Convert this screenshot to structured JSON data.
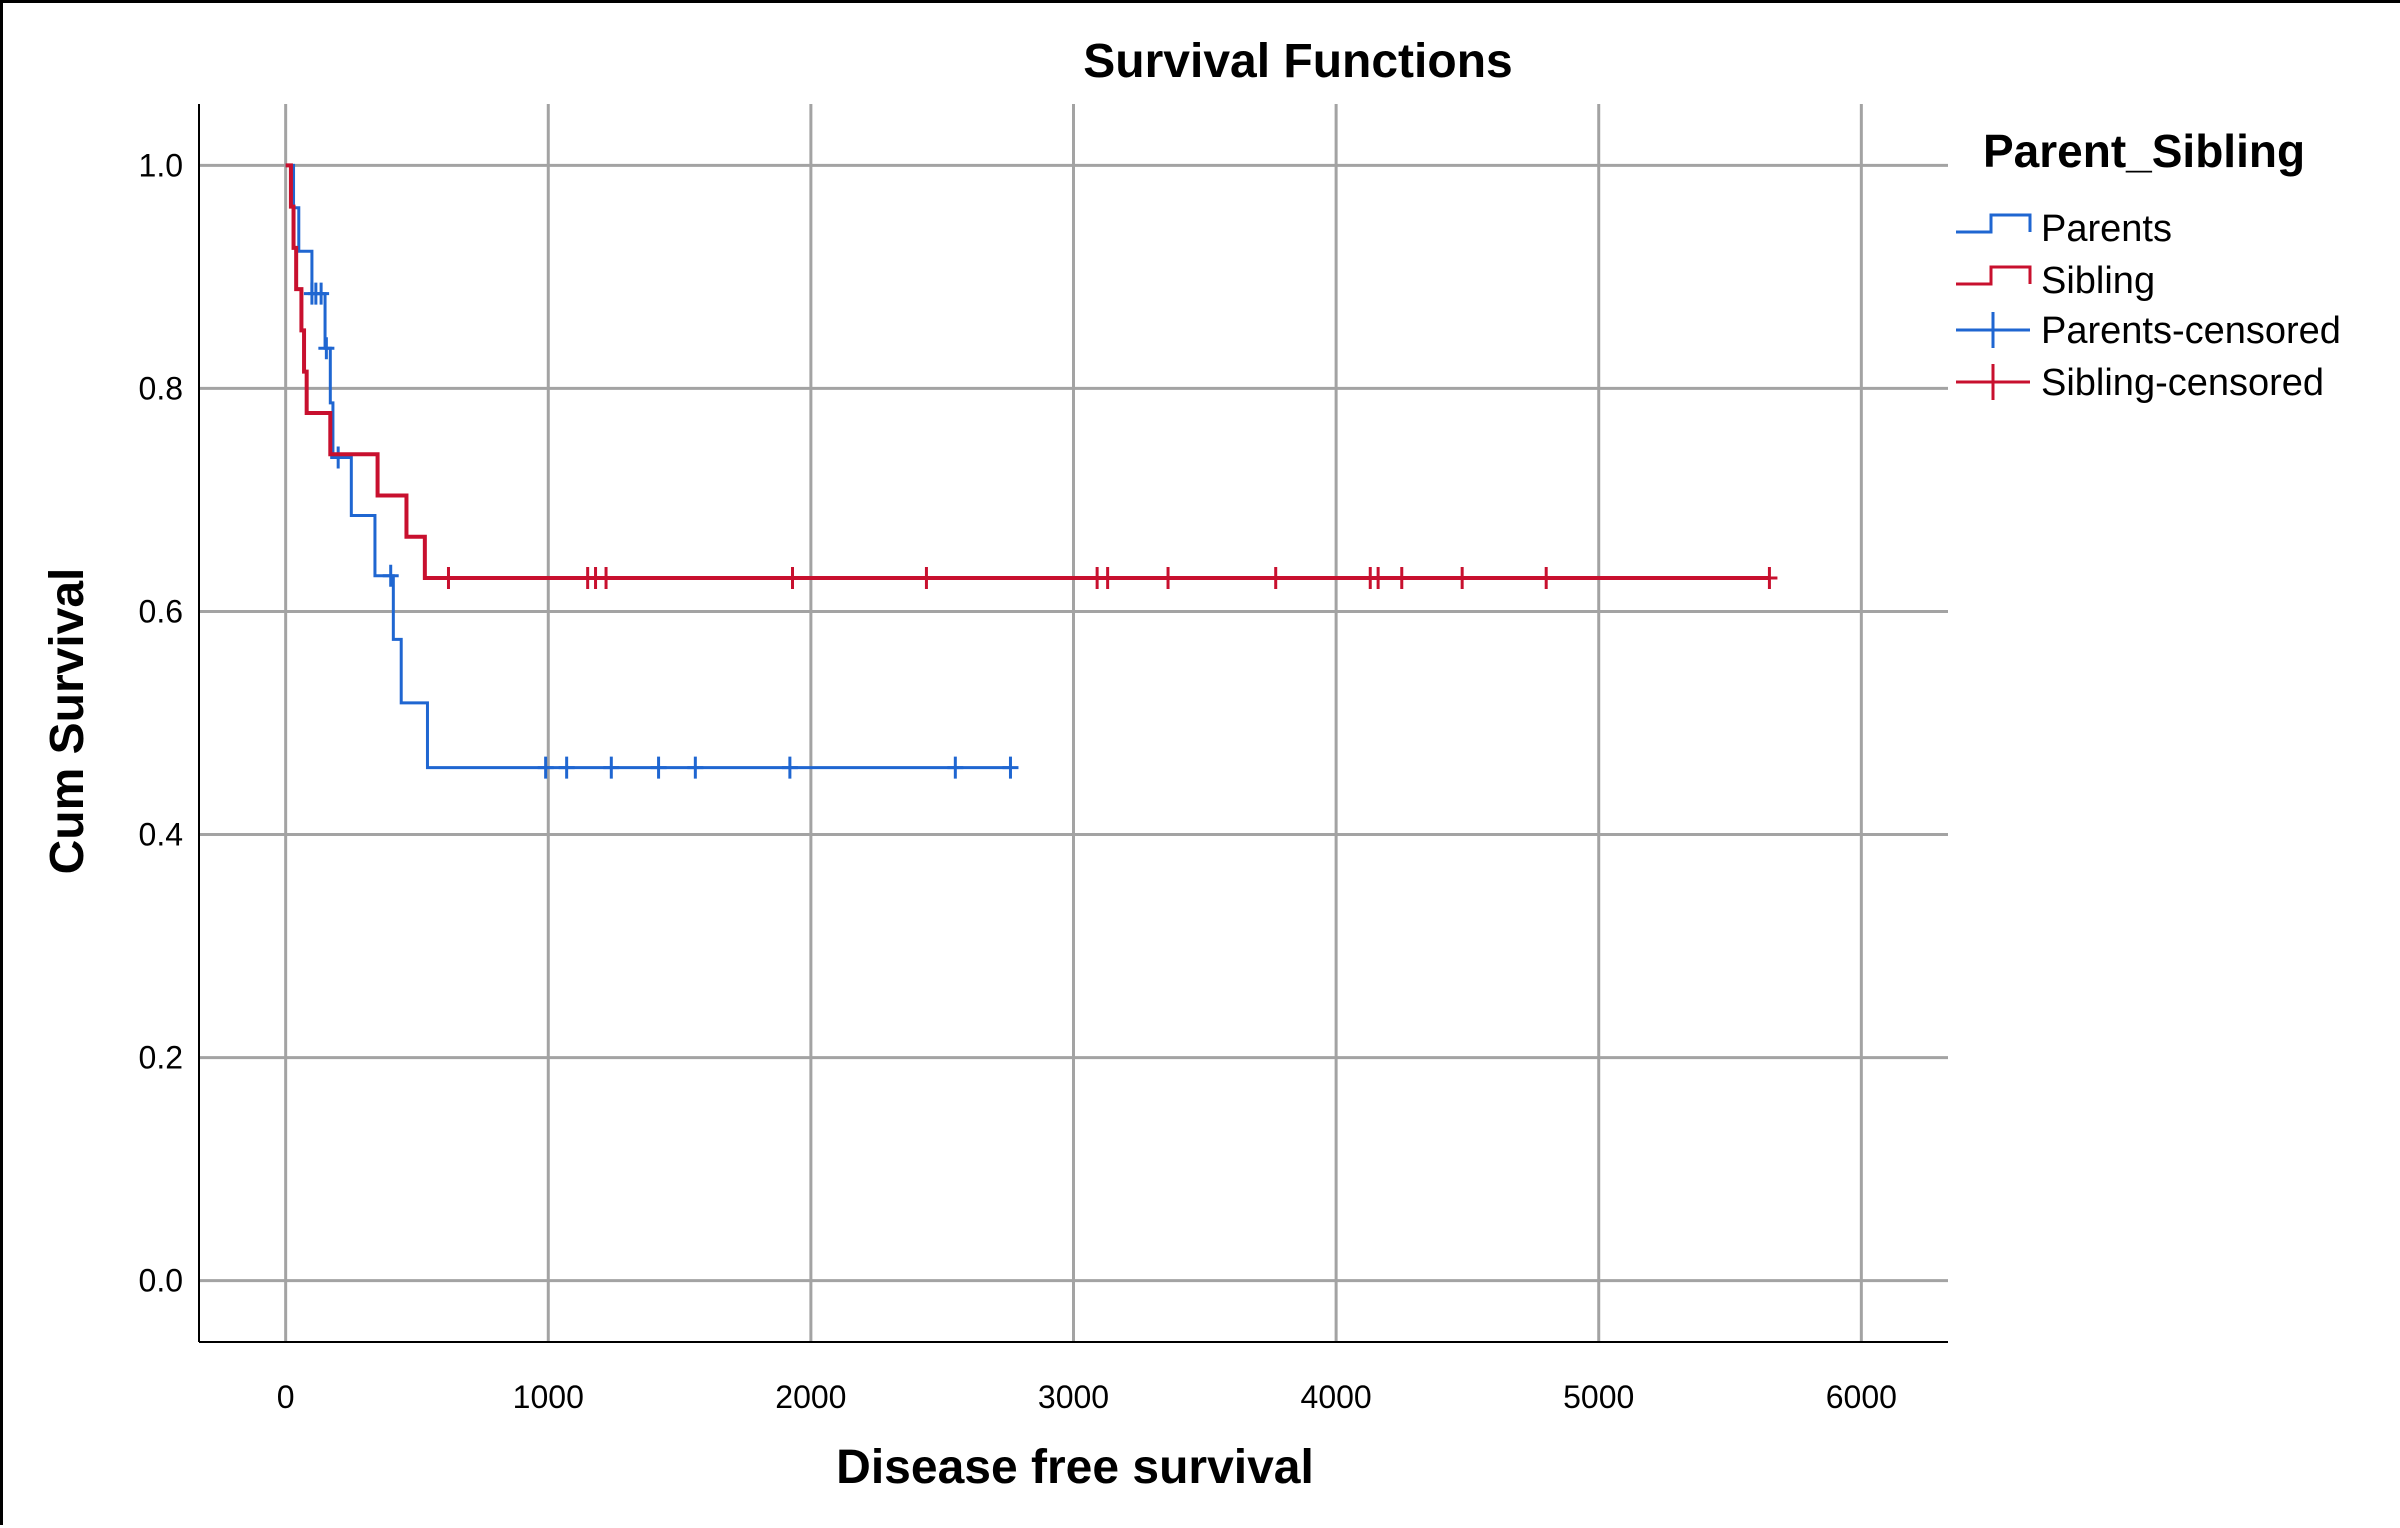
{
  "chart_data": {
    "type": "line",
    "subtype": "kaplan-meier-step",
    "title": "Survival Functions",
    "xlabel": "Disease free survival",
    "ylabel": "Cum Survival",
    "xlim": [
      -330,
      6330
    ],
    "ylim": [
      -0.055,
      1.055
    ],
    "xticks": [
      "0",
      "1000",
      "2000",
      "3000",
      "4000",
      "5000",
      "6000"
    ],
    "yticks": [
      "0.0",
      "0.2",
      "0.4",
      "0.6",
      "0.8",
      "1.0"
    ],
    "grid": true,
    "legend": {
      "title": "Parent_Sibling",
      "placement": "top-right outside",
      "entries": [
        "Parents",
        "Sibling",
        "Parents-censored",
        "Sibling-censored"
      ]
    },
    "series": [
      {
        "name": "Parents",
        "color": "#1f66d1",
        "steps": [
          [
            0,
            1.0
          ],
          [
            30,
            0.962
          ],
          [
            50,
            0.923
          ],
          [
            100,
            0.885
          ],
          [
            150,
            0.836
          ],
          [
            170,
            0.787
          ],
          [
            180,
            0.738
          ],
          [
            250,
            0.686
          ],
          [
            340,
            0.632
          ],
          [
            410,
            0.575
          ],
          [
            440,
            0.518
          ],
          [
            540,
            0.46
          ],
          [
            2760,
            0.46
          ]
        ],
        "censored_x": [
          100,
          115,
          135,
          155,
          200,
          400,
          990,
          1070,
          1240,
          1420,
          1560,
          1920,
          2550,
          2760
        ]
      },
      {
        "name": "Sibling",
        "color": "#c8102e",
        "steps": [
          [
            0,
            1.0
          ],
          [
            20,
            0.963
          ],
          [
            30,
            0.926
          ],
          [
            40,
            0.889
          ],
          [
            60,
            0.852
          ],
          [
            70,
            0.815
          ],
          [
            80,
            0.778
          ],
          [
            170,
            0.741
          ],
          [
            350,
            0.704
          ],
          [
            460,
            0.667
          ],
          [
            530,
            0.63
          ],
          [
            5650,
            0.63
          ]
        ],
        "censored_x": [
          620,
          1150,
          1180,
          1220,
          1930,
          2440,
          3090,
          3130,
          3360,
          3770,
          4130,
          4160,
          4250,
          4480,
          4800,
          5650
        ]
      }
    ]
  }
}
